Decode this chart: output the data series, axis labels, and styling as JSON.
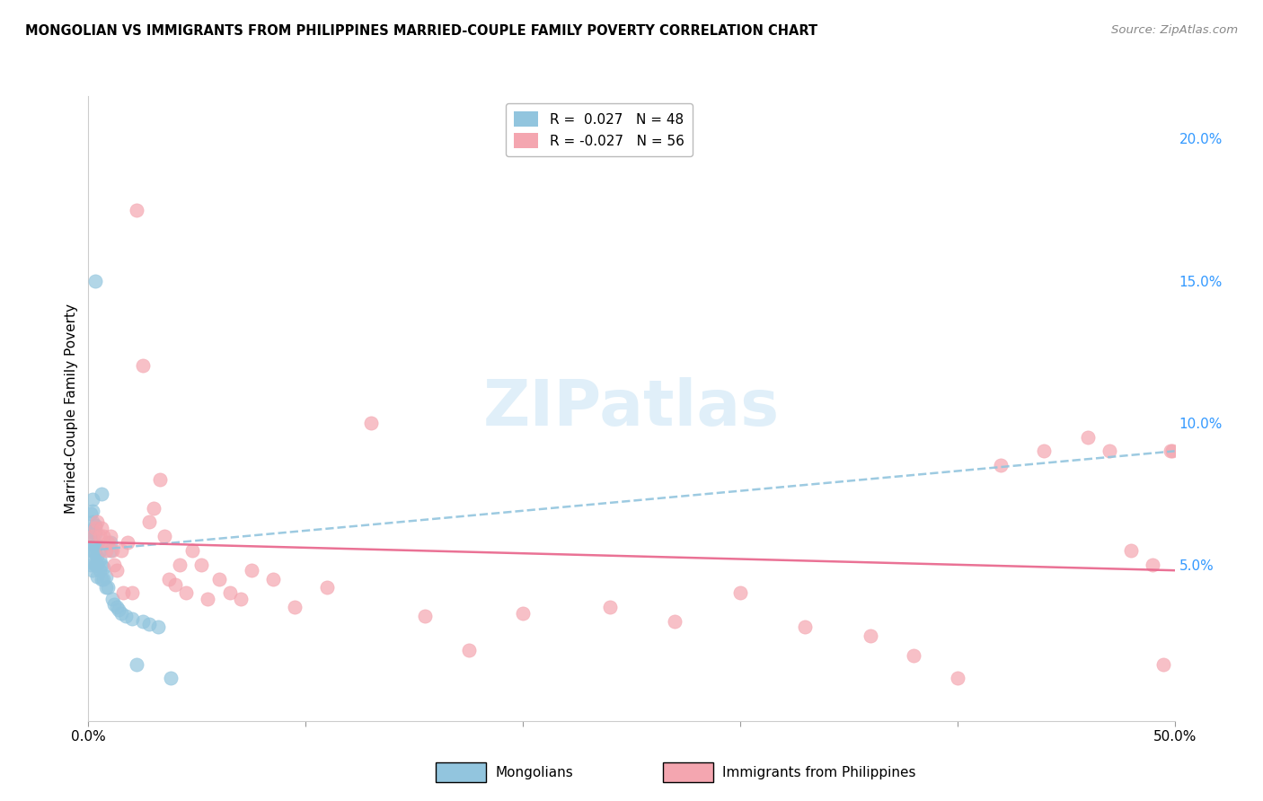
{
  "title": "MONGOLIAN VS IMMIGRANTS FROM PHILIPPINES MARRIED-COUPLE FAMILY POVERTY CORRELATION CHART",
  "source": "Source: ZipAtlas.com",
  "ylabel": "Married-Couple Family Poverty",
  "xlim": [
    0.0,
    0.5
  ],
  "ylim": [
    -0.005,
    0.215
  ],
  "yticks": [
    0.05,
    0.1,
    0.15,
    0.2
  ],
  "ytick_labels": [
    "5.0%",
    "10.0%",
    "15.0%",
    "20.0%"
  ],
  "xticks": [
    0.0,
    0.1,
    0.2,
    0.3,
    0.4,
    0.5
  ],
  "xtick_labels": [
    "0.0%",
    "",
    "",
    "",
    "",
    "50.0%"
  ],
  "mongolian_color": "#92c5de",
  "philippines_color": "#f4a6b0",
  "trend_mongolian_color": "#92c5de",
  "trend_philippines_color": "#e8638a",
  "background_color": "#ffffff",
  "watermark": "ZIPatlas",
  "mongolians_x": [
    0.001,
    0.001,
    0.001,
    0.001,
    0.001,
    0.002,
    0.002,
    0.002,
    0.002,
    0.002,
    0.002,
    0.002,
    0.002,
    0.003,
    0.003,
    0.003,
    0.003,
    0.003,
    0.003,
    0.004,
    0.004,
    0.004,
    0.004,
    0.005,
    0.005,
    0.005,
    0.006,
    0.006,
    0.006,
    0.007,
    0.007,
    0.008,
    0.008,
    0.009,
    0.01,
    0.01,
    0.011,
    0.012,
    0.013,
    0.014,
    0.015,
    0.017,
    0.02,
    0.022,
    0.025,
    0.028,
    0.032,
    0.038
  ],
  "mongolians_y": [
    0.05,
    0.055,
    0.058,
    0.062,
    0.068,
    0.048,
    0.051,
    0.055,
    0.058,
    0.062,
    0.065,
    0.069,
    0.073,
    0.05,
    0.054,
    0.057,
    0.061,
    0.064,
    0.15,
    0.046,
    0.05,
    0.053,
    0.057,
    0.048,
    0.052,
    0.055,
    0.045,
    0.05,
    0.075,
    0.045,
    0.049,
    0.042,
    0.046,
    0.042,
    0.055,
    0.058,
    0.038,
    0.036,
    0.035,
    0.034,
    0.033,
    0.032,
    0.031,
    0.015,
    0.03,
    0.029,
    0.028,
    0.01
  ],
  "philippines_x": [
    0.002,
    0.003,
    0.004,
    0.005,
    0.006,
    0.007,
    0.008,
    0.009,
    0.01,
    0.011,
    0.012,
    0.013,
    0.015,
    0.016,
    0.018,
    0.02,
    0.022,
    0.025,
    0.028,
    0.03,
    0.033,
    0.035,
    0.037,
    0.04,
    0.042,
    0.045,
    0.048,
    0.052,
    0.055,
    0.06,
    0.065,
    0.07,
    0.075,
    0.085,
    0.095,
    0.11,
    0.13,
    0.155,
    0.175,
    0.2,
    0.24,
    0.27,
    0.3,
    0.33,
    0.36,
    0.38,
    0.4,
    0.42,
    0.44,
    0.46,
    0.47,
    0.48,
    0.49,
    0.495,
    0.498,
    0.499
  ],
  "philippines_y": [
    0.06,
    0.063,
    0.065,
    0.06,
    0.063,
    0.06,
    0.055,
    0.058,
    0.06,
    0.055,
    0.05,
    0.048,
    0.055,
    0.04,
    0.058,
    0.04,
    0.175,
    0.12,
    0.065,
    0.07,
    0.08,
    0.06,
    0.045,
    0.043,
    0.05,
    0.04,
    0.055,
    0.05,
    0.038,
    0.045,
    0.04,
    0.038,
    0.048,
    0.045,
    0.035,
    0.042,
    0.1,
    0.032,
    0.02,
    0.033,
    0.035,
    0.03,
    0.04,
    0.028,
    0.025,
    0.018,
    0.01,
    0.085,
    0.09,
    0.095,
    0.09,
    0.055,
    0.05,
    0.015,
    0.09,
    0.09
  ]
}
